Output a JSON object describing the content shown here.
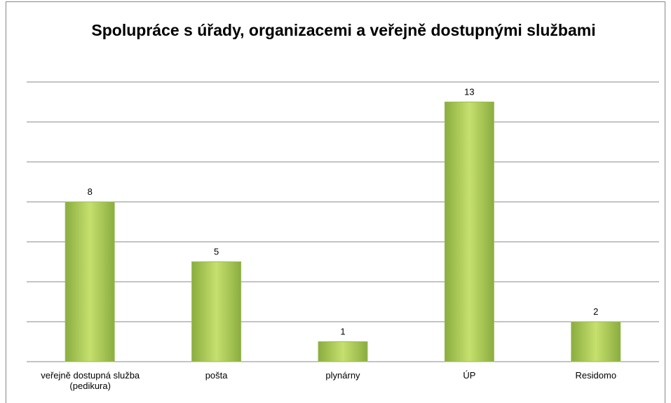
{
  "chart_data": {
    "type": "bar",
    "title": "Spolupráce s úřady, organizacemi a veřejně dostupnými službami",
    "categories": [
      "veřejně dostupná služba (pedikura)",
      "pošta",
      "plynárny",
      "ÚP",
      "Residomo"
    ],
    "values": [
      8,
      5,
      1,
      13,
      2
    ],
    "color": "#9bbb59",
    "ylim": [
      0,
      14
    ],
    "yticks": [
      0,
      2,
      4,
      6,
      8,
      10,
      12,
      14
    ],
    "grid": true
  }
}
